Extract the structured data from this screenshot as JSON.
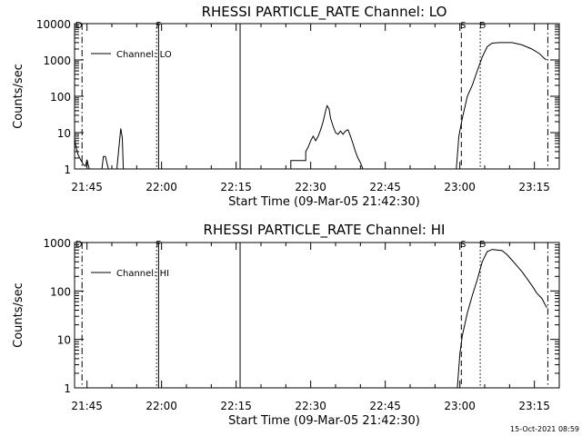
{
  "timestamp": "15-Oct-2021 08:59",
  "chart_data": [
    {
      "type": "line",
      "title": "RHESSI PARTICLE_RATE Channel: LO",
      "xlabel": "Start Time (09-Mar-05 21:42:30)",
      "ylabel": "Counts/sec",
      "xscale": "time-minutes",
      "yscale": "log",
      "xlim": [
        0,
        97.5
      ],
      "ylim": [
        1,
        10000
      ],
      "xticks": [
        {
          "value": 2.5,
          "label": "21:45"
        },
        {
          "value": 17.5,
          "label": "22:00"
        },
        {
          "value": 32.5,
          "label": "22:15"
        },
        {
          "value": 47.5,
          "label": "22:30"
        },
        {
          "value": 62.5,
          "label": "22:45"
        },
        {
          "value": 77.5,
          "label": "23:00"
        },
        {
          "value": 92.5,
          "label": "23:15"
        }
      ],
      "yticks": [
        {
          "value": 1,
          "label": "1"
        },
        {
          "value": 10,
          "label": "10"
        },
        {
          "value": 100,
          "label": "100"
        },
        {
          "value": 1000,
          "label": "1000"
        },
        {
          "value": 10000,
          "label": "10000"
        }
      ],
      "legend": {
        "position": "top-left",
        "entries": [
          "Channel: LO"
        ]
      },
      "markers": [
        {
          "x": 0.5,
          "label": "D",
          "style": "dashed",
          "with_line": false
        },
        {
          "x": 1.5,
          "label": "",
          "style": "dashdot",
          "with_line": true
        },
        {
          "x": 16.5,
          "label": "F",
          "style": "dotted",
          "with_line": true
        },
        {
          "x": 16.9,
          "label": "",
          "style": "solid",
          "with_line": true
        },
        {
          "x": 33.3,
          "label": "",
          "style": "solid",
          "with_line": true
        },
        {
          "x": 77.8,
          "label": "S",
          "style": "dashed",
          "with_line": true
        },
        {
          "x": 81.6,
          "label": "E",
          "style": "dotted",
          "with_line": true
        },
        {
          "x": 95.2,
          "label": "",
          "style": "dashdot",
          "with_line": true
        }
      ],
      "series": [
        {
          "name": "Channel: LO",
          "segments": [
            [
              [
                0,
                7
              ],
              [
                0.3,
                4
              ],
              [
                0.7,
                2.5
              ],
              [
                1.2,
                1.8
              ],
              [
                1.8,
                1.3
              ],
              [
                2.2,
                1.2
              ],
              [
                2.5,
                1.8
              ],
              [
                2.8,
                1.2
              ],
              [
                3.0,
                1.0
              ]
            ],
            [
              [
                5.5,
                1.0
              ],
              [
                5.8,
                2.2
              ],
              [
                6.2,
                2.2
              ],
              [
                6.5,
                1.5
              ],
              [
                6.8,
                1.0
              ]
            ],
            [
              [
                8.5,
                1.0
              ],
              [
                9.0,
                5
              ],
              [
                9.3,
                13
              ],
              [
                9.6,
                7
              ],
              [
                9.8,
                1.0
              ]
            ],
            [
              [
                43.5,
                1.0
              ],
              [
                43.5,
                1.7
              ],
              [
                46.5,
                1.7
              ],
              [
                46.5,
                3
              ],
              [
                47.0,
                4
              ],
              [
                47.5,
                6
              ],
              [
                48.0,
                8
              ],
              [
                48.5,
                6
              ],
              [
                49.0,
                8
              ],
              [
                49.5,
                12
              ],
              [
                50.0,
                20
              ],
              [
                50.5,
                40
              ],
              [
                50.8,
                55
              ],
              [
                51.2,
                45
              ],
              [
                51.5,
                25
              ],
              [
                52.0,
                15
              ],
              [
                52.5,
                10
              ],
              [
                53.0,
                9
              ],
              [
                53.5,
                11
              ],
              [
                54.0,
                9
              ],
              [
                54.5,
                11
              ],
              [
                55.0,
                12
              ],
              [
                55.5,
                8
              ],
              [
                56.0,
                5
              ],
              [
                56.5,
                3
              ],
              [
                57.0,
                2
              ],
              [
                57.5,
                1.5
              ],
              [
                58.0,
                1.0
              ]
            ],
            [
              [
                76.8,
                1.0
              ],
              [
                77.3,
                8
              ],
              [
                78.0,
                25
              ],
              [
                79.0,
                100
              ],
              [
                80.0,
                200
              ],
              [
                81.0,
                500
              ],
              [
                82.0,
                1200
              ],
              [
                83.0,
                2300
              ],
              [
                84.0,
                2900
              ],
              [
                85.5,
                3000
              ],
              [
                88.0,
                3000
              ],
              [
                90.0,
                2600
              ],
              [
                92.0,
                2000
              ],
              [
                93.5,
                1500
              ],
              [
                94.5,
                1100
              ],
              [
                95.0,
                1000
              ]
            ]
          ]
        }
      ]
    },
    {
      "type": "line",
      "title": "RHESSI PARTICLE_RATE Channel: HI",
      "xlabel": "Start Time (09-Mar-05 21:42:30)",
      "ylabel": "Counts/sec",
      "xscale": "time-minutes",
      "yscale": "log",
      "xlim": [
        0,
        97.5
      ],
      "ylim": [
        1,
        1000
      ],
      "xticks": [
        {
          "value": 2.5,
          "label": "21:45"
        },
        {
          "value": 17.5,
          "label": "22:00"
        },
        {
          "value": 32.5,
          "label": "22:15"
        },
        {
          "value": 47.5,
          "label": "22:30"
        },
        {
          "value": 62.5,
          "label": "22:45"
        },
        {
          "value": 77.5,
          "label": "23:00"
        },
        {
          "value": 92.5,
          "label": "23:15"
        }
      ],
      "yticks": [
        {
          "value": 1,
          "label": "1"
        },
        {
          "value": 10,
          "label": "10"
        },
        {
          "value": 100,
          "label": "100"
        },
        {
          "value": 1000,
          "label": "1000"
        }
      ],
      "legend": {
        "position": "top-left",
        "entries": [
          "Channel: HI"
        ]
      },
      "markers": [
        {
          "x": 0.5,
          "label": "D",
          "style": "dashed",
          "with_line": false
        },
        {
          "x": 1.5,
          "label": "",
          "style": "dashdot",
          "with_line": true
        },
        {
          "x": 16.5,
          "label": "F",
          "style": "dotted",
          "with_line": true
        },
        {
          "x": 16.9,
          "label": "",
          "style": "solid",
          "with_line": true
        },
        {
          "x": 33.3,
          "label": "",
          "style": "solid",
          "with_line": true
        },
        {
          "x": 77.8,
          "label": "S",
          "style": "dashed",
          "with_line": true
        },
        {
          "x": 81.6,
          "label": "E",
          "style": "dotted",
          "with_line": true
        },
        {
          "x": 95.2,
          "label": "",
          "style": "dashdot",
          "with_line": true
        }
      ],
      "series": [
        {
          "name": "Channel: HI",
          "segments": [
            [
              [
                77.0,
                1.0
              ],
              [
                77.5,
                5
              ],
              [
                78.0,
                12
              ],
              [
                79.0,
                35
              ],
              [
                80.0,
                80
              ],
              [
                81.0,
                170
              ],
              [
                82.0,
                400
              ],
              [
                83.0,
                650
              ],
              [
                84.0,
                720
              ],
              [
                85.0,
                700
              ],
              [
                86.0,
                680
              ],
              [
                87.0,
                560
              ],
              [
                88.0,
                430
              ],
              [
                89.0,
                330
              ],
              [
                90.0,
                250
              ],
              [
                91.0,
                180
              ],
              [
                92.0,
                130
              ],
              [
                93.0,
                90
              ],
              [
                94.0,
                70
              ],
              [
                95.0,
                45
              ]
            ]
          ]
        }
      ]
    }
  ]
}
